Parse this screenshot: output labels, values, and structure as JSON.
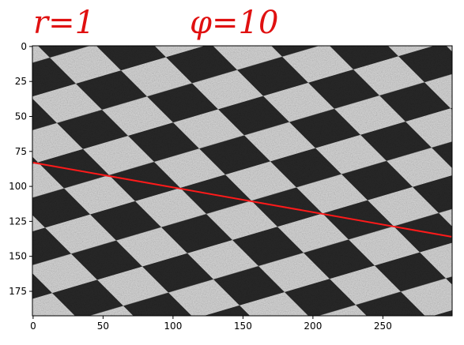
{
  "chart_data": {
    "type": "image",
    "annotations": [
      "r=1",
      "φ=10"
    ],
    "xlim": [
      -0.5,
      299.5
    ],
    "ylim": [
      192.5,
      -0.5
    ],
    "xticks": [
      0,
      50,
      100,
      150,
      200,
      250
    ],
    "yticks": [
      0,
      25,
      50,
      75,
      100,
      125,
      150,
      175
    ],
    "series": [
      {
        "color": "#ff1a1a",
        "x": [
          0,
          299
        ],
        "values": [
          83,
          136
        ]
      }
    ]
  }
}
